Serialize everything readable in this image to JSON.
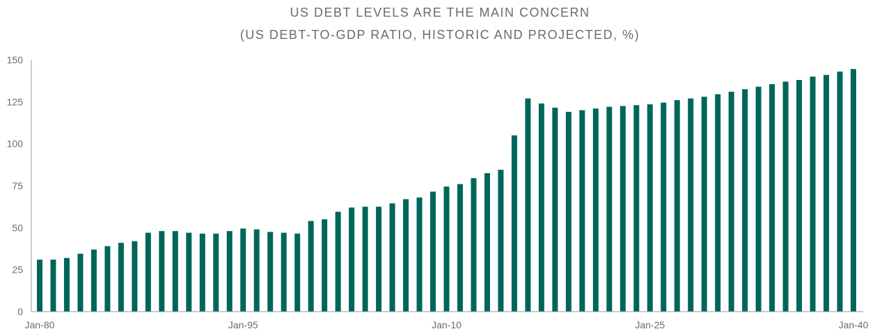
{
  "chart_data": {
    "type": "bar",
    "title": "US DEBT LEVELS ARE THE MAIN CONCERN",
    "subtitle": "(US DEBT-TO-GDP RATIO, HISTORIC AND PROJECTED, %)",
    "xlabel": "",
    "ylabel": "",
    "ylim": [
      0,
      150
    ],
    "yticks": [
      0,
      25,
      50,
      75,
      100,
      125,
      150
    ],
    "xtick_labels": [
      "Jan-80",
      "Jan-95",
      "Jan-10",
      "Jan-25",
      "Jan-40"
    ],
    "categories": [
      "1980",
      "1981",
      "1982",
      "1983",
      "1984",
      "1985",
      "1986",
      "1987",
      "1988",
      "1989",
      "1990",
      "1991",
      "1992",
      "1993",
      "1994",
      "1995",
      "1996",
      "1997",
      "1998",
      "1999",
      "2000",
      "2001",
      "2002",
      "2003",
      "2004",
      "2005",
      "2006",
      "2007",
      "2008",
      "2009",
      "2010",
      "2011",
      "2012",
      "2013",
      "2014",
      "2015",
      "2016",
      "2017",
      "2018",
      "2019",
      "2020",
      "2021",
      "2022",
      "2023",
      "2024",
      "2025",
      "2026",
      "2027",
      "2028",
      "2029",
      "2030",
      "2031",
      "2032",
      "2033",
      "2034",
      "2035",
      "2036",
      "2037",
      "2038",
      "2039",
      "2040"
    ],
    "values": [
      31,
      31,
      32,
      34.5,
      37,
      39,
      41,
      42,
      47,
      48,
      48,
      47,
      46.5,
      46.5,
      48,
      49.5,
      49,
      47.5,
      47,
      46.5,
      54,
      55,
      59.5,
      62,
      62.5,
      62.5,
      64.5,
      67,
      68,
      71.5,
      74.5,
      76,
      79.5,
      82.5,
      84.5,
      105,
      127,
      124,
      121.5,
      119,
      120,
      121,
      122,
      122.5,
      123,
      123.5,
      124.5,
      126,
      127,
      128,
      129.5,
      131,
      132.5,
      134,
      135.5,
      137,
      138,
      140,
      141,
      143,
      144.5
    ],
    "grid": false,
    "legend": "none",
    "colors": {
      "bar": "#00665a",
      "text": "#6b6b6b",
      "axis": "#9a9a9a"
    }
  }
}
